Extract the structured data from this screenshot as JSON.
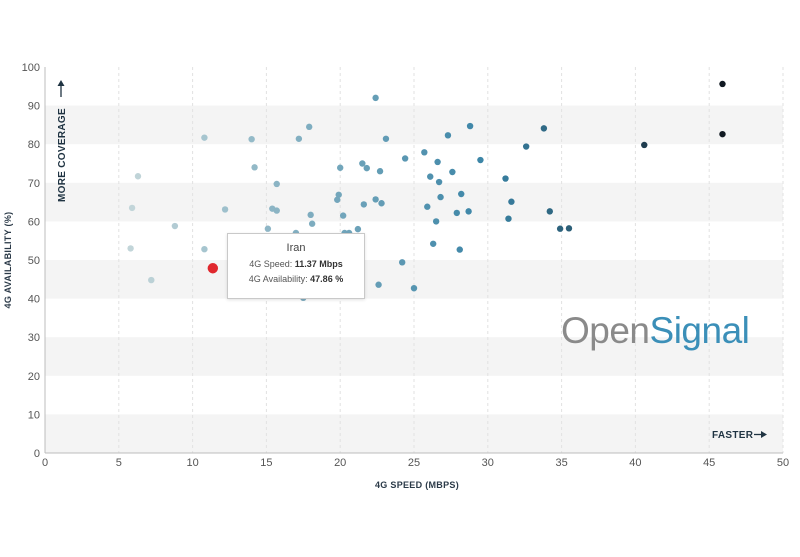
{
  "chart_data": {
    "type": "scatter",
    "xlabel": "4G SPEED (MBPS)",
    "ylabel": "4G AVAILABILITY (%)",
    "xlim": [
      0,
      50
    ],
    "ylim": [
      0,
      100
    ],
    "xticks": [
      0,
      5,
      10,
      15,
      20,
      25,
      30,
      35,
      40,
      45,
      50
    ],
    "yticks": [
      0,
      10,
      20,
      30,
      40,
      50,
      60,
      70,
      80,
      90,
      100
    ],
    "grid": "horizontal bands",
    "annotations": {
      "y_hint": "MORE COVERAGE",
      "x_hint": "FASTER"
    },
    "highlight": {
      "name": "Iran",
      "x": 11.37,
      "y": 47.86,
      "color": "#e0282e",
      "speed_label": "4G Speed:",
      "speed_value": "11.37 Mbps",
      "availability_label": "4G Availability:",
      "availability_value": "47.86 %"
    },
    "points": [
      [
        5.8,
        53
      ],
      [
        5.9,
        63.5
      ],
      [
        6.3,
        71.7
      ],
      [
        7.2,
        44.8
      ],
      [
        8.8,
        58.8
      ],
      [
        10.8,
        81.7
      ],
      [
        10.8,
        52.8
      ],
      [
        12.2,
        63.1
      ],
      [
        14,
        81.3
      ],
      [
        14.2,
        74
      ],
      [
        15.1,
        58.1
      ],
      [
        15.4,
        63.3
      ],
      [
        15.7,
        69.7
      ],
      [
        15.7,
        62.8
      ],
      [
        17,
        57
      ],
      [
        17.2,
        81.4
      ],
      [
        17.5,
        40.2
      ],
      [
        17.9,
        84.5
      ],
      [
        18,
        61.7
      ],
      [
        18.1,
        59.4
      ],
      [
        19.8,
        65.6
      ],
      [
        19.9,
        66.9
      ],
      [
        20,
        73.9
      ],
      [
        20.2,
        61.5
      ],
      [
        20.3,
        57
      ],
      [
        20.6,
        57
      ],
      [
        21.2,
        58
      ],
      [
        21.5,
        75
      ],
      [
        21.6,
        64.4
      ],
      [
        21.8,
        73.8
      ],
      [
        22.4,
        65.7
      ],
      [
        22.4,
        92
      ],
      [
        22.6,
        43.6
      ],
      [
        22.7,
        73
      ],
      [
        22.8,
        64.7
      ],
      [
        23.1,
        81.4
      ],
      [
        24.2,
        49.4
      ],
      [
        24.4,
        76.3
      ],
      [
        25,
        42.7
      ],
      [
        25.7,
        77.9
      ],
      [
        25.9,
        63.8
      ],
      [
        26.1,
        71.6
      ],
      [
        26.3,
        54.2
      ],
      [
        26.5,
        60
      ],
      [
        26.6,
        75.4
      ],
      [
        26.7,
        70.2
      ],
      [
        26.8,
        66.3
      ],
      [
        27.3,
        82.3
      ],
      [
        27.6,
        72.8
      ],
      [
        27.9,
        62.2
      ],
      [
        28.1,
        52.7
      ],
      [
        28.2,
        67.1
      ],
      [
        28.7,
        62.6
      ],
      [
        28.8,
        84.7
      ],
      [
        29.5,
        75.9
      ],
      [
        31.2,
        71.1
      ],
      [
        31.4,
        60.7
      ],
      [
        31.6,
        65.1
      ],
      [
        32.6,
        79.4
      ],
      [
        33.8,
        84.1
      ],
      [
        34.2,
        62.6
      ],
      [
        34.9,
        58.1
      ],
      [
        35.5,
        58.2
      ],
      [
        40.6,
        79.8
      ],
      [
        45.9,
        95.6
      ],
      [
        45.9,
        82.6
      ]
    ]
  },
  "logo": {
    "part1": "Open",
    "part2": "Signal"
  }
}
